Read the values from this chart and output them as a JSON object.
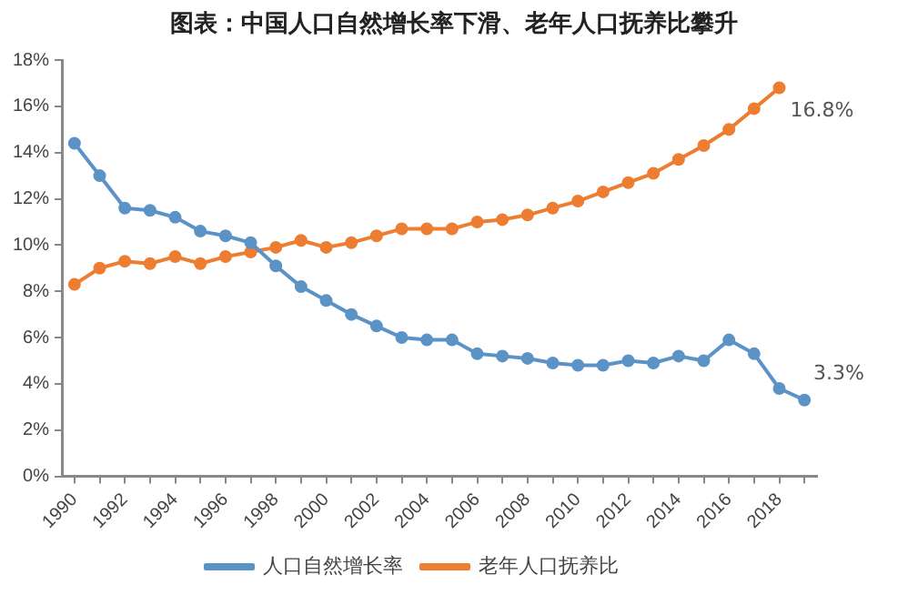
{
  "chart_data": {
    "type": "line",
    "title": "图表：中国人口自然增长率下滑、老年人口抚养比攀升",
    "categories": [
      "1990",
      null,
      "1992",
      null,
      "1994",
      null,
      "1996",
      null,
      "1998",
      null,
      "2000",
      null,
      "2002",
      null,
      "2004",
      null,
      "2006",
      null,
      "2008",
      null,
      "2010",
      null,
      "2012",
      null,
      "2014",
      null,
      "2016",
      null,
      "2018",
      null
    ],
    "series": [
      {
        "name": "人口自然增长率",
        "color": "#5b93c7",
        "values": [
          14.4,
          13.0,
          11.6,
          11.5,
          11.2,
          10.6,
          10.4,
          10.1,
          9.1,
          8.2,
          7.6,
          7.0,
          6.5,
          6.0,
          5.9,
          5.9,
          5.3,
          5.2,
          5.1,
          4.9,
          4.8,
          4.8,
          5.0,
          4.9,
          5.2,
          5.0,
          5.9,
          5.3,
          3.8,
          3.3
        ]
      },
      {
        "name": "老年人口抚养比",
        "color": "#ed7d31",
        "values": [
          8.3,
          9.0,
          9.3,
          9.2,
          9.5,
          9.2,
          9.5,
          9.7,
          9.9,
          10.2,
          9.9,
          10.1,
          10.4,
          10.7,
          10.7,
          10.7,
          11.0,
          11.1,
          11.3,
          11.6,
          11.9,
          12.3,
          12.7,
          13.1,
          13.7,
          14.3,
          15.0,
          15.9,
          16.8,
          null
        ]
      }
    ],
    "ylim": [
      0,
      18
    ],
    "yticks": [
      {
        "value": 0,
        "label": "0%"
      },
      {
        "value": 2,
        "label": "2%"
      },
      {
        "value": 4,
        "label": "4%"
      },
      {
        "value": 6,
        "label": "6%"
      },
      {
        "value": 8,
        "label": "8%"
      },
      {
        "value": 10,
        "label": "10%"
      },
      {
        "value": 12,
        "label": "12%"
      },
      {
        "value": 14,
        "label": "14%"
      },
      {
        "value": 16,
        "label": "16%"
      },
      {
        "value": 18,
        "label": "18%"
      }
    ],
    "annotations": [
      {
        "text": "16.8%",
        "x": "2018",
        "y": 16.8
      },
      "3.3%"
    ],
    "legend": "bottom",
    "marker": "circle",
    "line_style": "solid",
    "grid": false
  }
}
